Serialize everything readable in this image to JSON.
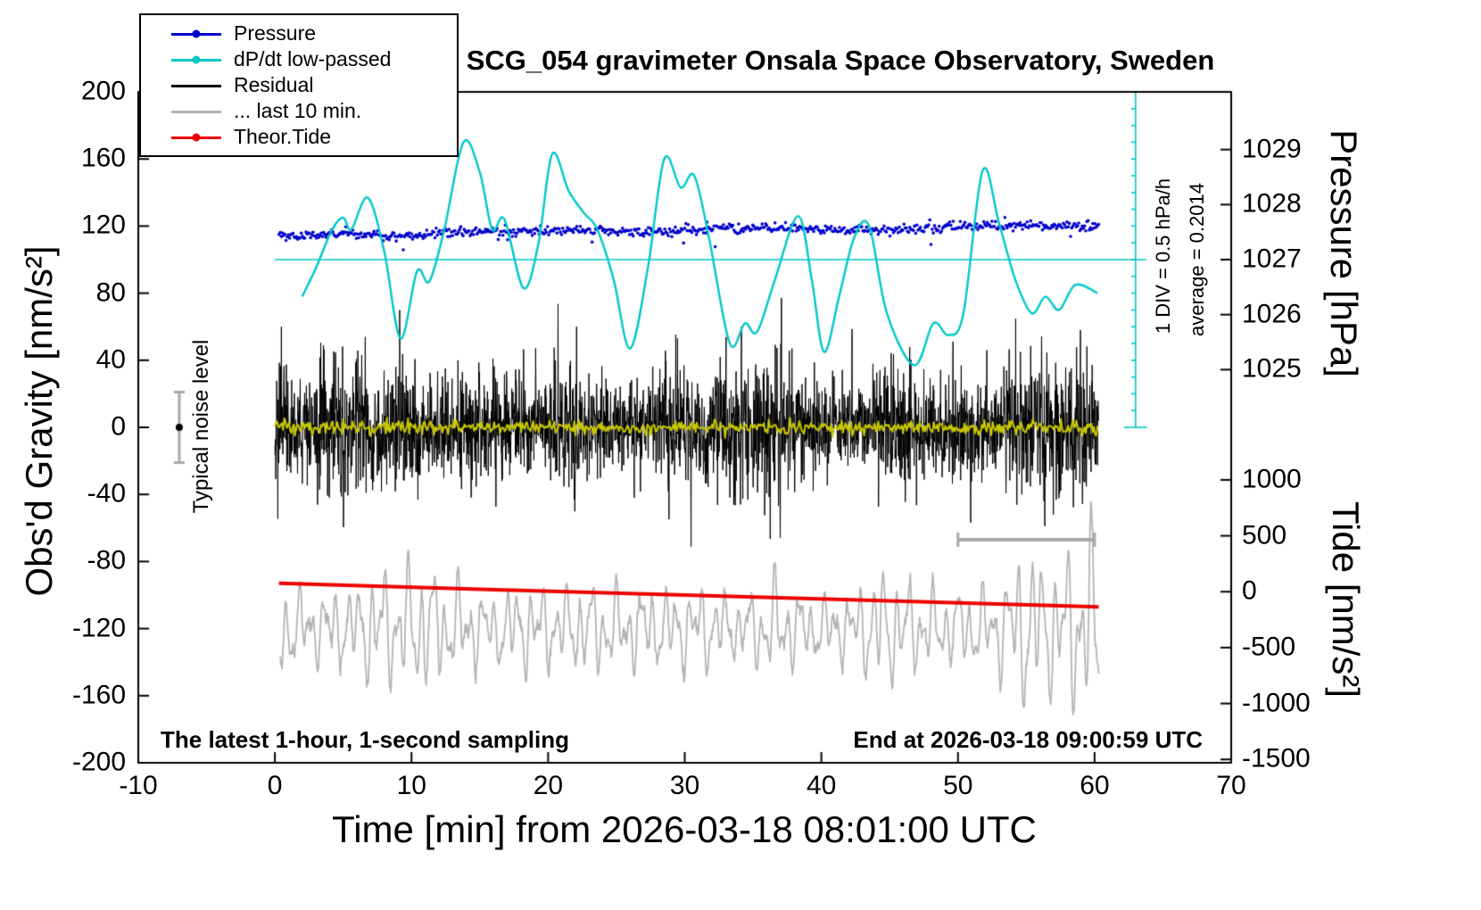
{
  "title": "SCG_054 gravimeter Onsala Space Observatory, Sweden",
  "annotations": {
    "noise_level": "Typical noise level",
    "div_scale": "1 DIV = 0.5 hPa/h",
    "average": "average = 0.2014",
    "sampling": "The latest 1-hour, 1-second sampling",
    "end_time": "End at 2026-03-18 09:00:59 UTC"
  },
  "legend": {
    "items": [
      {
        "label": "Pressure",
        "color": "#0000cd",
        "marker": "line-dot"
      },
      {
        "label": "dP/dt low-passed",
        "color": "#00c8c8",
        "marker": "line-dot"
      },
      {
        "label": "Residual",
        "color": "#000000",
        "marker": "line"
      },
      {
        "label": "... last 10 min.",
        "color": "#b4b4b4",
        "marker": "line"
      },
      {
        "label": "Theor.Tide",
        "color": "#ee0000",
        "marker": "line-dot"
      }
    ]
  },
  "chart_data": {
    "type": "line",
    "title": "SCG_054 gravimeter Onsala Space Observatory, Sweden",
    "xlabel": "Time [min] from 2026-03-18 08:01:00 UTC",
    "x_axis": {
      "min": -10,
      "max": 70,
      "ticks": [
        -10,
        0,
        10,
        20,
        30,
        40,
        50,
        60,
        70
      ]
    },
    "y_left": {
      "label": "Obs'd Gravity [nm/s²]",
      "min": -200,
      "max": 200,
      "ticks": [
        200,
        160,
        120,
        80,
        40,
        0,
        -40,
        -80,
        -120,
        -160,
        -200
      ]
    },
    "y_right_pressure": {
      "label": "Pressure [hPa]",
      "ticks": [
        1029,
        1028,
        1027,
        1026,
        1025
      ],
      "ref_hpa": 1027,
      "ref_gravity": 100,
      "gravity_per_hpa": 32.8
    },
    "y_right_tide": {
      "label": "Tide [nm/s²]",
      "ticks": [
        1000,
        500,
        0,
        -500,
        -1000,
        -1500
      ],
      "ref_tide": 0,
      "ref_gravity": -98,
      "tide_per_gravity": 15
    },
    "grid": false,
    "legend_position": "top-left",
    "noise_seed": 20260318,
    "series": [
      {
        "name": "Pressure",
        "type": "scatter",
        "color": "#0000cd",
        "axis": "pressure",
        "hpa_start": 1027.42,
        "hpa_end": 1027.62,
        "gravity_equiv_start": 114,
        "gravity_equiv_end": 120.5,
        "noise_sd_gravity": 1.4,
        "points": 700
      },
      {
        "name": "dP/dt low-passed",
        "type": "line",
        "color": "#00c8c8",
        "zero_line_gravity": 100,
        "div_hpa_per_h": 0.5,
        "keypoints_gravity": [
          [
            2,
            78
          ],
          [
            3,
            95
          ],
          [
            4.2,
            118
          ],
          [
            5,
            125
          ],
          [
            5.6,
            118
          ],
          [
            6.8,
            137
          ],
          [
            8,
            105
          ],
          [
            9.2,
            53
          ],
          [
            10.4,
            93
          ],
          [
            11.3,
            87
          ],
          [
            12.4,
            118
          ],
          [
            13.8,
            170
          ],
          [
            15,
            152
          ],
          [
            15.9,
            118
          ],
          [
            16.8,
            124
          ],
          [
            18.2,
            83
          ],
          [
            19.3,
            110
          ],
          [
            20.3,
            163
          ],
          [
            21.5,
            141
          ],
          [
            22.6,
            128
          ],
          [
            23.6,
            118
          ],
          [
            24.8,
            88
          ],
          [
            26,
            47
          ],
          [
            27.3,
            95
          ],
          [
            28.5,
            160
          ],
          [
            29.7,
            143
          ],
          [
            30.7,
            150
          ],
          [
            31.8,
            112
          ],
          [
            33.3,
            50
          ],
          [
            34.4,
            62
          ],
          [
            35.3,
            57
          ],
          [
            36.6,
            88
          ],
          [
            38.3,
            126
          ],
          [
            39.3,
            88
          ],
          [
            40.2,
            45
          ],
          [
            41.3,
            78
          ],
          [
            42.4,
            113
          ],
          [
            43.5,
            120
          ],
          [
            44.8,
            68
          ],
          [
            46.8,
            37
          ],
          [
            48.2,
            62
          ],
          [
            49.3,
            55
          ],
          [
            50.4,
            68
          ],
          [
            51.8,
            153
          ],
          [
            53,
            122
          ],
          [
            54.2,
            88
          ],
          [
            55.4,
            68
          ],
          [
            56.4,
            78
          ],
          [
            57.4,
            70
          ],
          [
            58.6,
            85
          ],
          [
            60.2,
            80
          ]
        ]
      },
      {
        "name": "Residual",
        "type": "noise-line",
        "color": "#000000",
        "center_gravity": 0,
        "typical_amplitude": 30,
        "max_spike": 80,
        "points": 2800
      },
      {
        "name": "Residual low-passed",
        "type": "noise-line",
        "color": "#c8c800",
        "center_gravity": 0,
        "typical_amplitude": 2.5,
        "points": 700
      },
      {
        "name": "Residual last 10 min (tide scale)",
        "type": "osc-line",
        "color": "#b4b4b4",
        "center_gravity": -120,
        "base_amplitude": 32,
        "end_amplitude": 70,
        "points": 1500
      },
      {
        "name": "Theor.Tide",
        "type": "line",
        "color": "#ee0000",
        "width": 4,
        "keypoints_gravity": [
          [
            0.3,
            -93
          ],
          [
            15,
            -96.5
          ],
          [
            30,
            -100
          ],
          [
            45,
            -103.5
          ],
          [
            60.3,
            -107
          ]
        ],
        "tide_units_start": 75,
        "tide_units_end": -135
      }
    ],
    "markers": {
      "noise_level_marker": {
        "x": -7,
        "gravity": 0,
        "error": 21
      },
      "last10_bar": {
        "x_start": 50,
        "x_end": 60,
        "gravity": -67
      },
      "dpdt_scale_bar": {
        "x": 63,
        "gravity_top": 200,
        "gravity_bottom": 0,
        "tick_step_gravity": 10
      },
      "dpdt_zero_line": {
        "gravity": 100,
        "x_start": 0,
        "x_end": 63.8
      }
    }
  }
}
